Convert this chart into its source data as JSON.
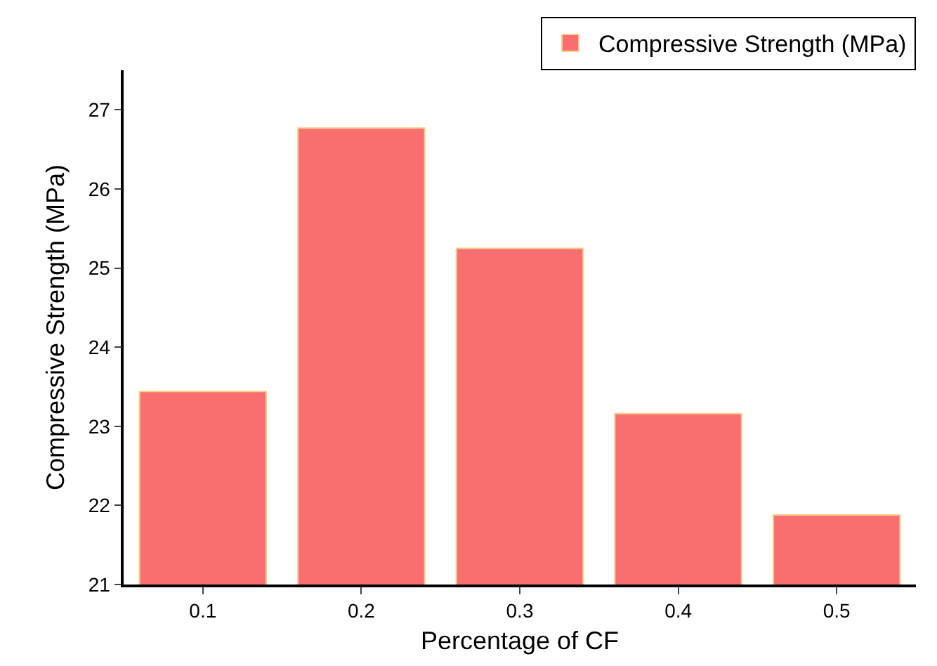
{
  "chart_data": {
    "type": "bar",
    "xlabel": "Percentage of CF",
    "ylabel": "Compressive Strength (MPa)",
    "categories": [
      "0.1",
      "0.2",
      "0.3",
      "0.4",
      "0.5"
    ],
    "series": [
      {
        "name": "Compressive Strength (MPa)",
        "color": "#f96f6f",
        "values": [
          23.44,
          26.77,
          25.25,
          23.16,
          21.88
        ]
      }
    ],
    "ylim": [
      21,
      27.5
    ],
    "yticks": [
      21,
      22,
      23,
      24,
      25,
      26,
      27
    ],
    "grid": false,
    "legend": "top right"
  }
}
